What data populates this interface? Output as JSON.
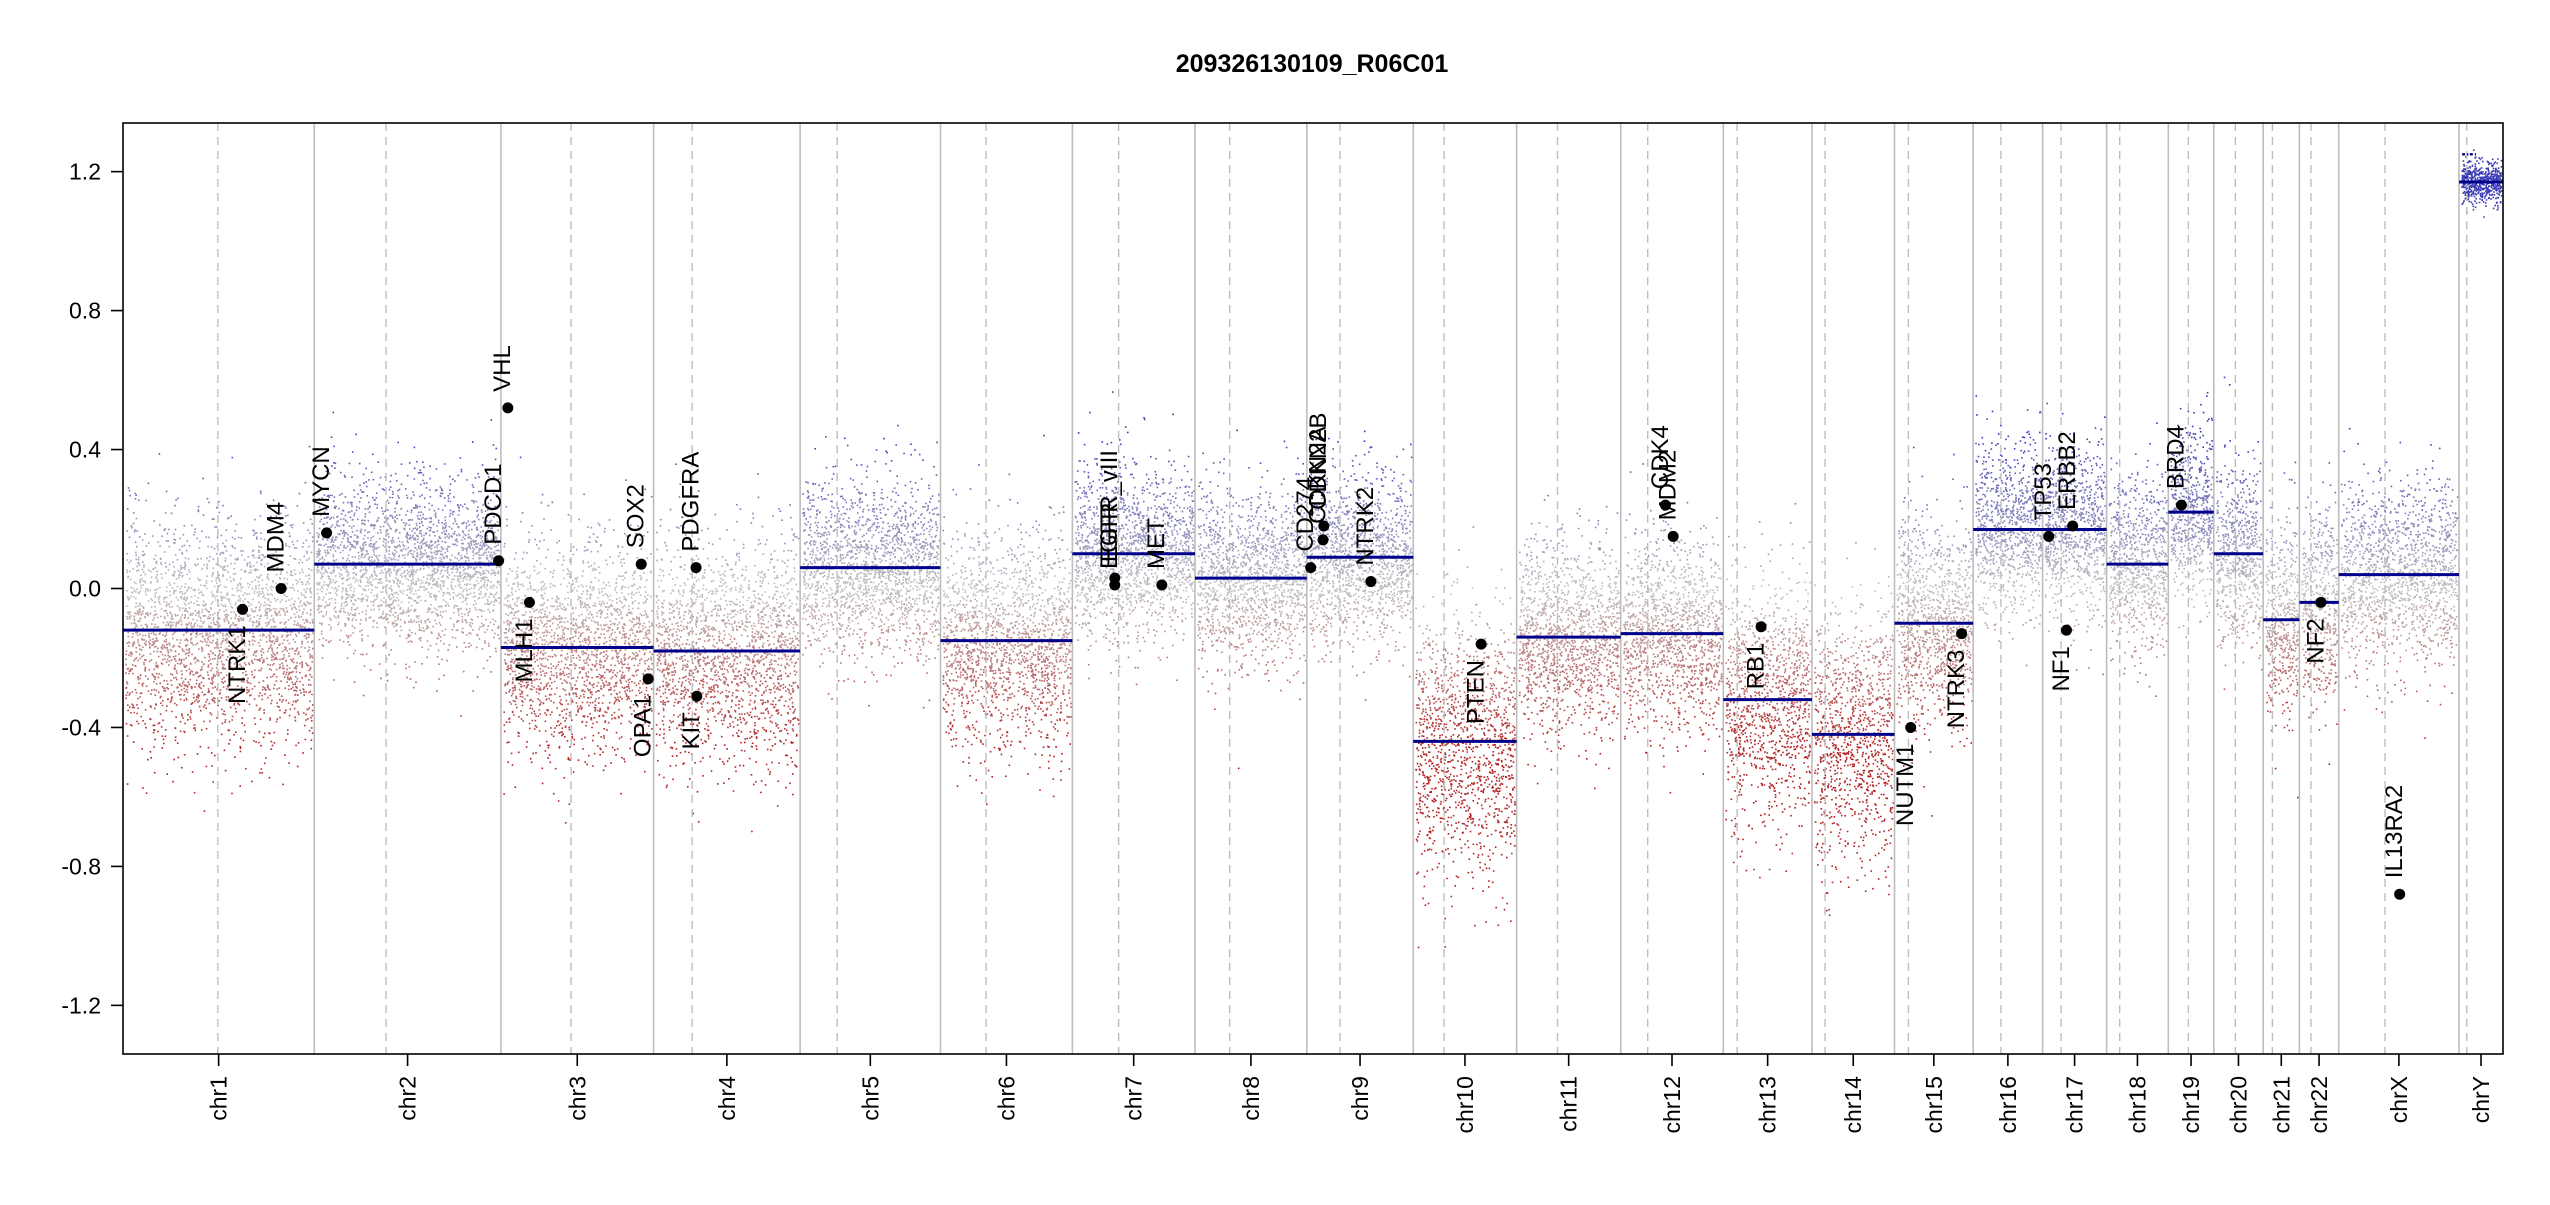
{
  "chart_data": {
    "type": "scatter",
    "title": "209326130109_R06C01",
    "xlabel": "",
    "ylabel": "",
    "ylim": [
      -1.34,
      1.34
    ],
    "yticks": [
      -1.2,
      -0.8,
      -0.4,
      0.0,
      0.4,
      0.8,
      1.2
    ],
    "ytick_labels": [
      "-1.2",
      "-0.8",
      "-0.4",
      "0.0",
      "0.4",
      "0.8",
      "1.2"
    ],
    "grid": false,
    "chromosomes": [
      {
        "name": "chr1",
        "start": 0,
        "end": 248,
        "centromere": 123,
        "segment": -0.12,
        "spread": 0.26
      },
      {
        "name": "chr2",
        "start": 248,
        "end": 490,
        "centromere": 93,
        "segment": 0.07,
        "spread": 0.2
      },
      {
        "name": "chr3",
        "start": 490,
        "end": 688,
        "centromere": 91,
        "segment": -0.17,
        "spread": 0.24
      },
      {
        "name": "chr4",
        "start": 688,
        "end": 878,
        "centromere": 50,
        "segment": -0.18,
        "spread": 0.25
      },
      {
        "name": "chr5",
        "start": 878,
        "end": 1060,
        "centromere": 48,
        "segment": 0.06,
        "spread": 0.2
      },
      {
        "name": "chr6",
        "start": 1060,
        "end": 1231,
        "centromere": 59,
        "segment": -0.15,
        "spread": 0.24
      },
      {
        "name": "chr7",
        "start": 1231,
        "end": 1390,
        "centromere": 60,
        "segment": 0.1,
        "spread": 0.2
      },
      {
        "name": "chr8",
        "start": 1390,
        "end": 1535,
        "centromere": 45,
        "segment": 0.03,
        "spread": 0.2
      },
      {
        "name": "chr9",
        "start": 1535,
        "end": 1673,
        "centromere": 43,
        "segment": 0.09,
        "spread": 0.2
      },
      {
        "name": "chr10",
        "start": 1673,
        "end": 1807,
        "centromere": 40,
        "segment": -0.44,
        "spread": 0.3
      },
      {
        "name": "chr11",
        "start": 1807,
        "end": 1942,
        "centromere": 53,
        "segment": -0.14,
        "spread": 0.22
      },
      {
        "name": "chr12",
        "start": 1942,
        "end": 2075,
        "centromere": 35,
        "segment": -0.13,
        "spread": 0.22
      },
      {
        "name": "chr13",
        "start": 2075,
        "end": 2190,
        "centromere": 18,
        "segment": -0.32,
        "spread": 0.28
      },
      {
        "name": "chr14",
        "start": 2190,
        "end": 2297,
        "centromere": 17,
        "segment": -0.42,
        "spread": 0.3
      },
      {
        "name": "chr15",
        "start": 2297,
        "end": 2399,
        "centromere": 18,
        "segment": -0.1,
        "spread": 0.24
      },
      {
        "name": "chr16",
        "start": 2399,
        "end": 2489,
        "centromere": 36,
        "segment": 0.17,
        "spread": 0.2
      },
      {
        "name": "chr17",
        "start": 2489,
        "end": 2572,
        "centromere": 24,
        "segment": 0.17,
        "spread": 0.2
      },
      {
        "name": "chr18",
        "start": 2572,
        "end": 2652,
        "centromere": 17,
        "segment": 0.07,
        "spread": 0.2
      },
      {
        "name": "chr19",
        "start": 2652,
        "end": 2711,
        "centromere": 26,
        "segment": 0.22,
        "spread": 0.2
      },
      {
        "name": "chr20",
        "start": 2711,
        "end": 2775,
        "centromere": 28,
        "segment": 0.1,
        "spread": 0.2
      },
      {
        "name": "chr21",
        "start": 2775,
        "end": 2822,
        "centromere": 12,
        "segment": -0.09,
        "spread": 0.24
      },
      {
        "name": "chr22",
        "start": 2822,
        "end": 2873,
        "centromere": 15,
        "segment": -0.04,
        "spread": 0.22
      },
      {
        "name": "chrX",
        "start": 2873,
        "end": 3029,
        "centromere": 60,
        "segment": 0.04,
        "spread": 0.22
      },
      {
        "name": "chrY",
        "start": 3029,
        "end": 3086,
        "centromere": 10,
        "segment": 1.17,
        "spread": 0.05
      }
    ],
    "chrY_upper_segments": [
      {
        "x0": 3033,
        "x1": 3041,
        "y": 1.25
      },
      {
        "x0": 3043,
        "x1": 3051,
        "y": 1.25
      }
    ],
    "genes": [
      {
        "name": "NTRK1",
        "x": 155,
        "y": -0.06,
        "label_side": "below"
      },
      {
        "name": "MDM4",
        "x": 205,
        "y": 0.0,
        "label_side": "above"
      },
      {
        "name": "MYCN",
        "x": 264,
        "y": 0.16,
        "label_side": "above"
      },
      {
        "name": "VHL",
        "x": 499,
        "y": 0.52,
        "label_side": "above"
      },
      {
        "name": "PDCD1",
        "x": 487,
        "y": 0.08,
        "label_side": "above"
      },
      {
        "name": "MLH1",
        "x": 527,
        "y": -0.04,
        "label_side": "below"
      },
      {
        "name": "SOX2",
        "x": 672,
        "y": 0.07,
        "label_side": "above"
      },
      {
        "name": "OPA1",
        "x": 681,
        "y": -0.26,
        "label_side": "below"
      },
      {
        "name": "PDGFRA",
        "x": 743,
        "y": 0.06,
        "label_side": "above"
      },
      {
        "name": "KIT",
        "x": 744,
        "y": -0.31,
        "label_side": "below"
      },
      {
        "name": "EGFR",
        "x": 1286,
        "y": 0.01,
        "label_side": "above"
      },
      {
        "name": "EGFR_vIII",
        "x": 1286,
        "y": 0.03,
        "label_side": "above"
      },
      {
        "name": "MET",
        "x": 1347,
        "y": 0.01,
        "label_side": "above"
      },
      {
        "name": "CD274",
        "x": 1540,
        "y": 0.06,
        "label_side": "above"
      },
      {
        "name": "CDKN2A",
        "x": 1556,
        "y": 0.14,
        "label_side": "above"
      },
      {
        "name": "CDKN2B",
        "x": 1557,
        "y": 0.18,
        "label_side": "above"
      },
      {
        "name": "NTRK2",
        "x": 1618,
        "y": 0.02,
        "label_side": "above"
      },
      {
        "name": "PTEN",
        "x": 1761,
        "y": -0.16,
        "label_side": "below"
      },
      {
        "name": "CDK4",
        "x": 2000,
        "y": 0.24,
        "label_side": "above"
      },
      {
        "name": "MDM2",
        "x": 2010,
        "y": 0.15,
        "label_side": "above"
      },
      {
        "name": "RB1",
        "x": 2124,
        "y": -0.11,
        "label_side": "below"
      },
      {
        "name": "NUTM1",
        "x": 2318,
        "y": -0.4,
        "label_side": "below"
      },
      {
        "name": "NTRK3",
        "x": 2384,
        "y": -0.13,
        "label_side": "below"
      },
      {
        "name": "TP53",
        "x": 2497,
        "y": 0.15,
        "label_side": "above"
      },
      {
        "name": "ERBB2",
        "x": 2528,
        "y": 0.18,
        "label_side": "above"
      },
      {
        "name": "NF1",
        "x": 2520,
        "y": -0.12,
        "label_side": "below"
      },
      {
        "name": "BRD4",
        "x": 2669,
        "y": 0.24,
        "label_side": "above"
      },
      {
        "name": "NF2",
        "x": 2850,
        "y": -0.04,
        "label_side": "below"
      },
      {
        "name": "IL13RA2",
        "x": 2952,
        "y": -0.88,
        "label_side": "above"
      }
    ],
    "colors": {
      "gain": "#3a3ab4",
      "loss": "#b22222",
      "neutral": "#bfbfbf",
      "segment": "#00008b",
      "gene_point": "#000000",
      "axis": "#000000",
      "chrom_border": "#bdbdbd",
      "centromere": "#bdbdbd"
    }
  }
}
